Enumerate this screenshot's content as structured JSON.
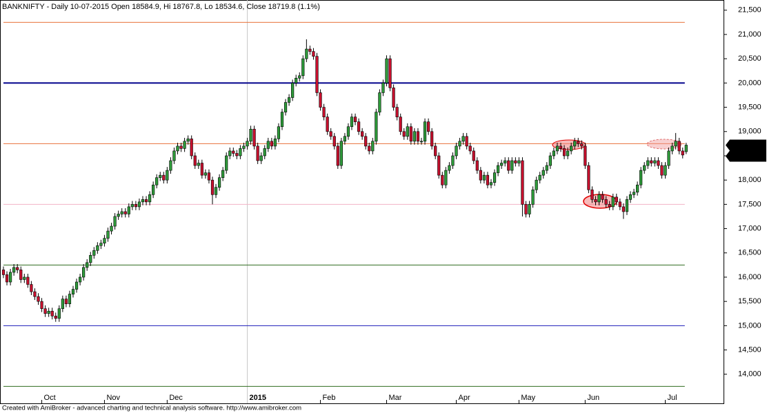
{
  "chart_data": {
    "type": "candlestick",
    "title": "BANKNIFTY - Daily 10-07-2015 Open 18584.9, Hi 18767.8, Lo 18534.6, Close 18719.8 (1.1%)",
    "footer": "Created with AmiBroker - advanced charting and technical analysis software. http://www.amibroker.com",
    "categories": [
      null,
      null,
      null,
      null,
      null,
      null,
      null,
      null,
      null,
      null,
      null,
      "Oct",
      null,
      null,
      null,
      null,
      null,
      null,
      null,
      null,
      null,
      null,
      null,
      null,
      null,
      null,
      null,
      null,
      null,
      "Nov",
      null,
      null,
      null,
      null,
      null,
      null,
      null,
      null,
      null,
      null,
      null,
      null,
      null,
      null,
      null,
      null,
      null,
      "Dec",
      null,
      null,
      null,
      null,
      null,
      null,
      null,
      null,
      null,
      null,
      null,
      null,
      null,
      null,
      null,
      null,
      null,
      null,
      null,
      null,
      null,
      null,
      "2015",
      null,
      null,
      null,
      null,
      null,
      null,
      null,
      null,
      null,
      null,
      null,
      null,
      null,
      null,
      null,
      null,
      null,
      null,
      null,
      null,
      "Feb",
      null,
      null,
      null,
      null,
      null,
      null,
      null,
      null,
      null,
      null,
      null,
      null,
      null,
      null,
      null,
      null,
      null,
      null,
      "Mar",
      null,
      null,
      null,
      null,
      null,
      null,
      null,
      null,
      null,
      null,
      null,
      null,
      null,
      null,
      null,
      null,
      null,
      null,
      null,
      "Apr",
      null,
      null,
      null,
      null,
      null,
      null,
      null,
      null,
      null,
      null,
      null,
      null,
      null,
      null,
      null,
      null,
      null,
      "May",
      null,
      null,
      null,
      null,
      null,
      null,
      null,
      null,
      null,
      null,
      null,
      null,
      null,
      null,
      null,
      null,
      null,
      null,
      "Jun",
      null,
      null,
      null,
      null,
      null,
      null,
      null,
      null,
      null,
      null,
      null,
      null,
      null,
      null,
      null,
      null,
      null,
      null,
      null,
      null,
      null,
      null,
      "Jul",
      null,
      null,
      null,
      null,
      null,
      null
    ],
    "open": [
      16150,
      16050,
      15900,
      16100,
      16200,
      16150,
      15950,
      16000,
      15850,
      15700,
      15600,
      15500,
      15350,
      15250,
      15300,
      15200,
      15150,
      15350,
      15550,
      15450,
      15650,
      15750,
      15900,
      16000,
      16200,
      16300,
      16450,
      16550,
      16650,
      16700,
      16800,
      16950,
      17050,
      17250,
      17300,
      17350,
      17300,
      17450,
      17500,
      17450,
      17550,
      17600,
      17550,
      17700,
      17900,
      18050,
      18100,
      18000,
      18200,
      18400,
      18600,
      18700,
      18650,
      18800,
      18850,
      18500,
      18300,
      18350,
      18100,
      18150,
      18000,
      17700,
      17850,
      18050,
      18200,
      18500,
      18600,
      18550,
      18500,
      18650,
      18700,
      18800,
      19050,
      18700,
      18400,
      18500,
      18650,
      18800,
      18700,
      18850,
      19100,
      19400,
      19600,
      19700,
      20000,
      20100,
      20150,
      20500,
      20700,
      20650,
      20550,
      19800,
      19500,
      19300,
      19000,
      18900,
      18700,
      18300,
      18800,
      18900,
      19100,
      19300,
      19200,
      19000,
      18900,
      18700,
      18600,
      18800,
      19400,
      19800,
      20000,
      20500,
      19900,
      19500,
      19300,
      19000,
      18900,
      19100,
      18800,
      19000,
      18800,
      18800,
      19200,
      19000,
      18700,
      18500,
      18100,
      17900,
      18200,
      18300,
      18500,
      18700,
      18800,
      18900,
      18700,
      18600,
      18400,
      18200,
      18000,
      18100,
      17900,
      17950,
      18150,
      18300,
      18350,
      18400,
      18200,
      18400,
      18350,
      18400,
      17500,
      17300,
      17500,
      17800,
      18000,
      18100,
      18200,
      18300,
      18500,
      18600,
      18700,
      18650,
      18500,
      18600,
      18700,
      18800,
      18750,
      18700,
      18300,
      17800,
      17600,
      17550,
      17700,
      17600,
      17500,
      17450,
      17650,
      17550,
      17450,
      17350,
      17600,
      17700,
      17750,
      17900,
      18200,
      18300,
      18400,
      18350,
      18400,
      18300,
      18100,
      18300,
      18600,
      18700,
      18800,
      18600,
      18584.9
    ],
    "high": [
      16220,
      16120,
      16170,
      16270,
      16270,
      16220,
      16070,
      16070,
      15920,
      15770,
      15670,
      15570,
      15420,
      15370,
      15370,
      15270,
      15420,
      15620,
      15620,
      15720,
      15820,
      15970,
      16070,
      16270,
      16370,
      16520,
      16620,
      16720,
      16770,
      16870,
      17020,
      17120,
      17320,
      17370,
      17420,
      17420,
      17520,
      17570,
      17570,
      17620,
      17670,
      17670,
      17770,
      17970,
      18120,
      18170,
      18170,
      18270,
      18470,
      18670,
      18770,
      18770,
      18870,
      18920,
      18920,
      18570,
      18420,
      18420,
      18220,
      18220,
      18070,
      17920,
      18120,
      18270,
      18570,
      18670,
      18670,
      18620,
      18720,
      18770,
      18870,
      19120,
      19120,
      18770,
      18570,
      18720,
      18870,
      18870,
      18920,
      19170,
      19470,
      19670,
      19770,
      20070,
      20170,
      20220,
      20570,
      20900,
      20770,
      20720,
      20620,
      19870,
      19570,
      19370,
      19070,
      18970,
      18770,
      18870,
      18970,
      19170,
      19370,
      19370,
      19270,
      19070,
      18970,
      18770,
      18870,
      19470,
      19870,
      20070,
      20570,
      20570,
      19970,
      19570,
      19370,
      19070,
      19170,
      19170,
      19070,
      19070,
      18870,
      19270,
      19270,
      19070,
      18770,
      18570,
      18170,
      18270,
      18370,
      18570,
      18770,
      18870,
      18970,
      18970,
      18770,
      18670,
      18470,
      18270,
      18170,
      18170,
      18020,
      18220,
      18370,
      18420,
      18470,
      18470,
      18470,
      18470,
      18470,
      18470,
      17570,
      17570,
      17870,
      18070,
      18170,
      18270,
      18370,
      18570,
      18670,
      18770,
      18770,
      18720,
      18670,
      18770,
      18870,
      18870,
      18820,
      18770,
      18370,
      17870,
      17670,
      17770,
      17770,
      17670,
      17570,
      17720,
      17720,
      17620,
      17520,
      17670,
      17770,
      17820,
      17970,
      18270,
      18370,
      18470,
      18470,
      18470,
      18470,
      18370,
      18370,
      18670,
      18770,
      18970,
      18870,
      18670,
      18767.8
    ],
    "low": [
      15980,
      15830,
      15830,
      16030,
      16080,
      15880,
      15880,
      15780,
      15630,
      15530,
      15430,
      15280,
      15180,
      15180,
      15130,
      15080,
      15080,
      15280,
      15380,
      15380,
      15580,
      15680,
      15830,
      15930,
      16130,
      16230,
      16380,
      16480,
      16580,
      16630,
      16730,
      16880,
      16980,
      17180,
      17230,
      17230,
      17230,
      17380,
      17380,
      17380,
      17480,
      17480,
      17480,
      17630,
      17830,
      17980,
      17930,
      17930,
      18130,
      18330,
      18530,
      18580,
      18580,
      18730,
      18430,
      18230,
      18230,
      18030,
      18030,
      17930,
      17500,
      17630,
      17780,
      17980,
      18130,
      18430,
      18480,
      18430,
      18430,
      18580,
      18630,
      18730,
      18630,
      18330,
      18330,
      18430,
      18580,
      18630,
      18630,
      18780,
      19030,
      19330,
      19530,
      19630,
      19930,
      20030,
      20080,
      20430,
      20580,
      20480,
      19730,
      19430,
      19230,
      18930,
      18830,
      18630,
      18230,
      18230,
      18730,
      18830,
      19030,
      19130,
      18930,
      18830,
      18630,
      18530,
      18530,
      18730,
      19330,
      19730,
      19930,
      19830,
      19430,
      19230,
      18930,
      18830,
      18830,
      18730,
      18730,
      18730,
      18730,
      18730,
      18930,
      18630,
      18430,
      18030,
      17830,
      17830,
      18130,
      18230,
      18430,
      18630,
      18730,
      18630,
      18530,
      18330,
      18130,
      17930,
      17930,
      17830,
      17830,
      17880,
      18080,
      18230,
      18280,
      18130,
      18130,
      18280,
      18280,
      17250,
      17230,
      17230,
      17430,
      17730,
      17930,
      18030,
      18130,
      18230,
      18430,
      18530,
      18580,
      18430,
      18430,
      18530,
      18630,
      18680,
      18630,
      18230,
      17730,
      17530,
      17480,
      17480,
      17530,
      17430,
      17380,
      17380,
      17480,
      17380,
      17200,
      17280,
      17530,
      17630,
      17680,
      17830,
      18130,
      18230,
      18280,
      18280,
      18230,
      18030,
      18030,
      18230,
      18530,
      18630,
      18530,
      18446,
      18534.6
    ],
    "close": [
      16050,
      15900,
      16100,
      16200,
      16150,
      15950,
      16000,
      15850,
      15700,
      15600,
      15500,
      15350,
      15250,
      15300,
      15200,
      15150,
      15350,
      15550,
      15450,
      15650,
      15750,
      15900,
      16000,
      16200,
      16300,
      16450,
      16550,
      16650,
      16700,
      16800,
      16950,
      17050,
      17250,
      17300,
      17350,
      17300,
      17450,
      17500,
      17450,
      17550,
      17600,
      17550,
      17700,
      17900,
      18050,
      18100,
      18000,
      18200,
      18400,
      18600,
      18700,
      18650,
      18800,
      18850,
      18500,
      18300,
      18350,
      18100,
      18150,
      18000,
      17700,
      17850,
      18050,
      18200,
      18500,
      18600,
      18550,
      18500,
      18650,
      18700,
      18800,
      19050,
      18700,
      18400,
      18500,
      18650,
      18800,
      18700,
      18850,
      19100,
      19400,
      19600,
      19700,
      20000,
      20100,
      20150,
      20500,
      20700,
      20650,
      20550,
      19800,
      19500,
      19300,
      19000,
      18900,
      18700,
      18300,
      18800,
      18900,
      19100,
      19300,
      19200,
      19000,
      18900,
      18700,
      18600,
      18800,
      19400,
      19800,
      20000,
      20500,
      19900,
      19500,
      19300,
      19000,
      18900,
      19100,
      18800,
      19000,
      18800,
      18800,
      19200,
      19000,
      18700,
      18500,
      18100,
      17900,
      18200,
      18300,
      18500,
      18700,
      18800,
      18900,
      18700,
      18600,
      18400,
      18200,
      18000,
      18100,
      17900,
      17950,
      18150,
      18300,
      18350,
      18400,
      18200,
      18400,
      18350,
      18400,
      17500,
      17300,
      17500,
      17800,
      18000,
      18100,
      18200,
      18300,
      18500,
      18600,
      18700,
      18650,
      18500,
      18600,
      18700,
      18800,
      18750,
      18700,
      18300,
      17800,
      17600,
      17550,
      17700,
      17600,
      17500,
      17450,
      17650,
      17550,
      17450,
      17350,
      17600,
      17700,
      17750,
      17900,
      18200,
      18300,
      18400,
      18350,
      18400,
      18300,
      18100,
      18300,
      18600,
      18700,
      18800,
      18600,
      18516,
      18719.8
    ],
    "up_color": "#2e9b3a",
    "down_color": "#c8102e",
    "last_label": "18,719.8",
    "levels": [
      {
        "value": 21250,
        "color": "#e8703a",
        "width": 1
      },
      {
        "value": 20000,
        "color": "#00008b",
        "width": 2
      },
      {
        "value": 18750,
        "color": "#e8703a",
        "width": 1
      },
      {
        "value": 17500,
        "color": "#f2b3c6",
        "width": 1
      },
      {
        "value": 16250,
        "color": "#2e6b1e",
        "width": 1
      },
      {
        "value": 15000,
        "color": "#1a1ab8",
        "width": 1
      },
      {
        "value": 13750,
        "color": "#2e6b1e",
        "width": 1
      }
    ],
    "ylim": [
      13400,
      21710
    ],
    "yticks": [
      {
        "value": 14000,
        "label": "14,000"
      },
      {
        "value": 14500,
        "label": "14,500"
      },
      {
        "value": 15000,
        "label": "15,000"
      },
      {
        "value": 15500,
        "label": "15,500"
      },
      {
        "value": 16000,
        "label": "16,000"
      },
      {
        "value": 16500,
        "label": "16,500"
      },
      {
        "value": 17000,
        "label": "17,000"
      },
      {
        "value": 17500,
        "label": "17,500"
      },
      {
        "value": 18000,
        "label": "18,000"
      },
      {
        "value": 18500,
        "label": "18,500"
      },
      {
        "value": 19000,
        "label": "19,000"
      },
      {
        "value": 19500,
        "label": "19,500"
      },
      {
        "value": 20000,
        "label": "20,000"
      },
      {
        "value": 20500,
        "label": "20,500"
      },
      {
        "value": 21000,
        "label": "21,000"
      },
      {
        "value": 21500,
        "label": "21,500"
      }
    ]
  }
}
